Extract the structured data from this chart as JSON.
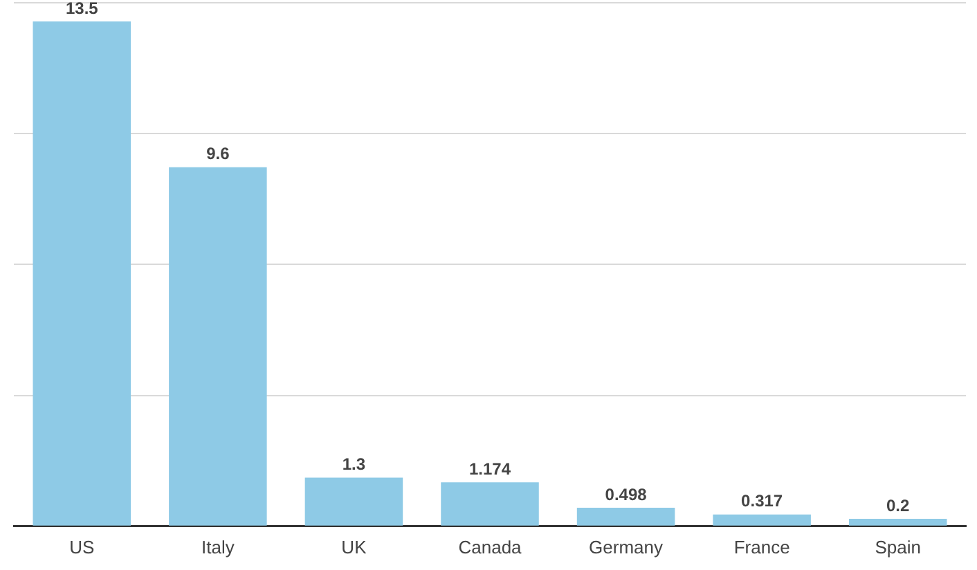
{
  "chart_data": {
    "type": "bar",
    "categories": [
      "US",
      "Italy",
      "UK",
      "Canada",
      "Germany",
      "France",
      "Spain"
    ],
    "values": [
      13.5,
      9.6,
      1.3,
      1.174,
      0.498,
      0.317,
      0.2
    ],
    "color": "#8ecae6",
    "ylim": [
      0,
      14
    ],
    "yticks": [
      {
        "value": 0,
        "label": null
      },
      {
        "value": 3.5,
        "label": null
      },
      {
        "value": 7,
        "label": null
      },
      {
        "value": 10.5,
        "label": null
      },
      {
        "value": 14,
        "label": null
      }
    ],
    "grid": "y",
    "tick_labels": "x",
    "data_labels": true
  }
}
